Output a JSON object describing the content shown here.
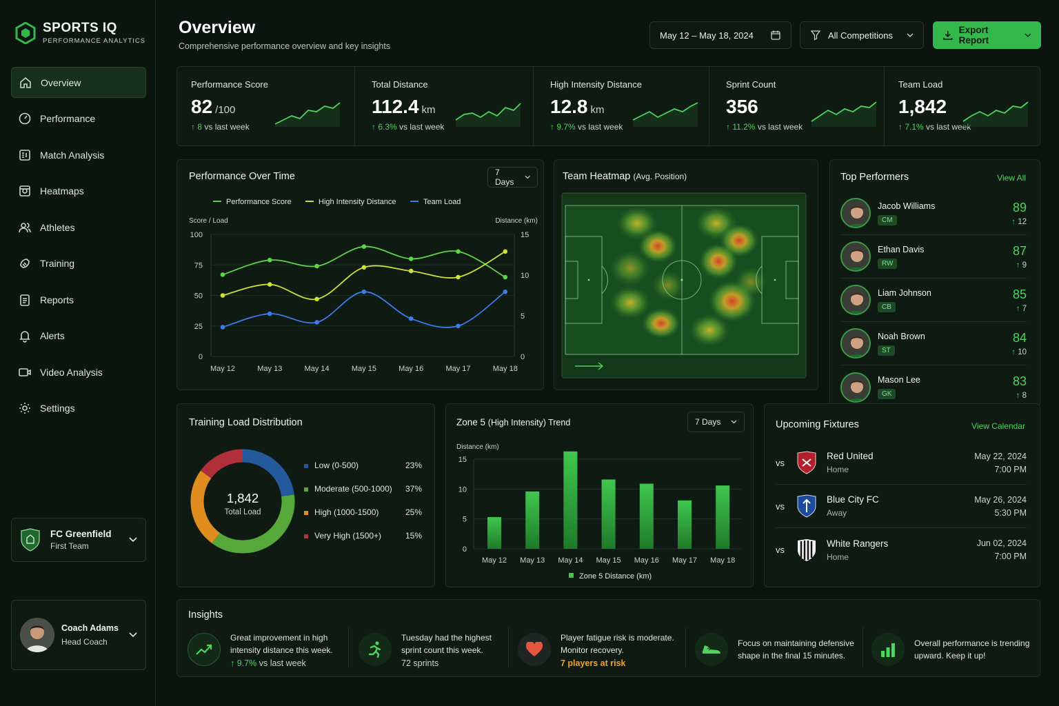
{
  "brand": {
    "name": "SPORTS IQ",
    "tagline": "PERFORMANCE ANALYTICS"
  },
  "nav": [
    {
      "label": "Overview",
      "icon": "home-icon"
    },
    {
      "label": "Performance",
      "icon": "gauge-icon"
    },
    {
      "label": "Match Analysis",
      "icon": "analysis-icon"
    },
    {
      "label": "Heatmaps",
      "icon": "heatmap-icon"
    },
    {
      "label": "Athletes",
      "icon": "users-icon"
    },
    {
      "label": "Training",
      "icon": "training-icon"
    },
    {
      "label": "Reports",
      "icon": "report-icon"
    },
    {
      "label": "Alerts",
      "icon": "bell-icon"
    },
    {
      "label": "Video Analysis",
      "icon": "video-icon"
    },
    {
      "label": "Settings",
      "icon": "gear-icon"
    }
  ],
  "team": {
    "name": "FC Greenfield",
    "sub": "First Team"
  },
  "coach": {
    "name": "Coach Adams",
    "role": "Head Coach"
  },
  "header": {
    "title": "Overview",
    "subtitle": "Comprehensive performance overview and key insights",
    "date_range": "May 12 – May 18, 2024",
    "filter": "All Competitions",
    "export": "Export Report"
  },
  "kpis": [
    {
      "label": "Performance Score",
      "value": "82",
      "unit": "/100",
      "change": "8",
      "change_suffix": "vs last week"
    },
    {
      "label": "Total Distance",
      "value": "112.4",
      "unit": "km",
      "change": "6.3%",
      "change_suffix": "vs last week"
    },
    {
      "label": "High Intensity Distance",
      "value": "12.8",
      "unit": "km",
      "change": "9.7%",
      "change_suffix": "vs last week"
    },
    {
      "label": "Sprint Count",
      "value": "356",
      "unit": "",
      "change": "11.2%",
      "change_suffix": "vs last week"
    },
    {
      "label": "Team Load",
      "value": "1,842",
      "unit": "",
      "change": "7.1%",
      "change_suffix": "vs last week"
    }
  ],
  "perf_chart": {
    "title": "Performance Over Time",
    "range": "7 Days",
    "left_label": "Score / Load",
    "right_label": "Distance (km)"
  },
  "heatmap": {
    "title": "Team Heatmap",
    "subtitle": "(Avg. Position)"
  },
  "top_performers": {
    "title": "Top Performers",
    "link": "View All",
    "players": [
      {
        "name": "Jacob Williams",
        "pos": "CM",
        "score": "89",
        "delta": "12"
      },
      {
        "name": "Ethan Davis",
        "pos": "RW",
        "score": "87",
        "delta": "9"
      },
      {
        "name": "Liam Johnson",
        "pos": "CB",
        "score": "85",
        "delta": "7"
      },
      {
        "name": "Noah Brown",
        "pos": "ST",
        "score": "84",
        "delta": "10"
      },
      {
        "name": "Mason Lee",
        "pos": "GK",
        "score": "83",
        "delta": "8"
      }
    ]
  },
  "load_dist": {
    "title": "Training Load Distribution",
    "center_value": "1,842",
    "center_label": "Total Load"
  },
  "zone5": {
    "title": "Zone 5",
    "title_paren": "(High Intensity) Trend",
    "range": "7 Days",
    "ylabel": "Distance (km)",
    "legend": "Zone 5 Distance (km)"
  },
  "fixtures": {
    "title": "Upcoming Fixtures",
    "link": "View Calendar",
    "items": [
      {
        "vs": "vs",
        "team": "Red United",
        "venue": "Home",
        "date": "May 22, 2024",
        "time": "7:00 PM"
      },
      {
        "vs": "vs",
        "team": "Blue City FC",
        "venue": "Away",
        "date": "May 26, 2024",
        "time": "5:30 PM"
      },
      {
        "vs": "vs",
        "team": "White Rangers",
        "venue": "Home",
        "date": "Jun 02, 2024",
        "time": "7:00 PM"
      }
    ]
  },
  "insights": {
    "title": "Insights",
    "items": [
      {
        "text": "Great improvement in high intensity distance this week.",
        "sub_value": "9.7%",
        "sub_suffix": "vs last week",
        "icon": "trend-up-icon"
      },
      {
        "text": "Tuesday had the highest sprint count this week.",
        "sub": "72 sprints",
        "icon": "runner-icon"
      },
      {
        "text": "Player fatigue risk is moderate. Monitor recovery.",
        "sub": "7 players at risk",
        "icon": "heart-icon"
      },
      {
        "text": "Focus on maintaining defensive shape in the final 15 minutes.",
        "icon": "shoe-icon"
      },
      {
        "text": "Overall performance is trending upward. Keep it up!",
        "icon": "bar-chart-icon"
      }
    ]
  },
  "chart_data": [
    {
      "type": "line",
      "title": "Performance Over Time",
      "categories": [
        "May 12",
        "May 13",
        "May 14",
        "May 15",
        "May 16",
        "May 17",
        "May 18"
      ],
      "ylabel": "Score / Load",
      "ylim": [
        0,
        100
      ],
      "yticks": [
        0,
        25,
        50,
        75,
        100
      ],
      "y2label": "Distance (km)",
      "y2lim": [
        0,
        15
      ],
      "y2ticks": [
        0,
        5,
        10,
        15
      ],
      "series": [
        {
          "name": "Performance Score",
          "color": "#5ed447",
          "values": [
            67,
            79,
            74,
            90,
            80,
            86,
            65
          ]
        },
        {
          "name": "High Intensity Distance",
          "color": "#cde03a",
          "values": [
            50,
            59,
            47,
            73,
            70,
            65,
            86
          ]
        },
        {
          "name": "Team Load",
          "color": "#3d7bea",
          "values": [
            24,
            35,
            28,
            53,
            31,
            25,
            53
          ]
        }
      ],
      "legend": "top"
    },
    {
      "type": "pie",
      "title": "Training Load Distribution",
      "labels": [
        "Low (0-500)",
        "Moderate (500-1000)",
        "High (1000-1500)",
        "Very High (1500+)"
      ],
      "values": [
        23,
        37,
        25,
        15
      ],
      "colors": [
        "#245a9c",
        "#57a83a",
        "#e08c1f",
        "#b0303a"
      ]
    },
    {
      "type": "bar",
      "title": "Zone 5 (High Intensity) Trend",
      "ylabel": "Distance (km)",
      "ylim": [
        0,
        15
      ],
      "yticks": [
        0,
        5,
        10,
        15
      ],
      "categories": [
        "May 12",
        "May 13",
        "May 14",
        "May 15",
        "May 16",
        "May 17",
        "May 18"
      ],
      "series": [
        {
          "name": "Zone 5 Distance (km)",
          "values": [
            5.3,
            9.6,
            16.3,
            11.6,
            10.9,
            8.1,
            10.6
          ]
        }
      ]
    }
  ],
  "colors": {
    "accent": "#34b84c",
    "bg": "#0b140e",
    "panel": "#0e1a12"
  }
}
